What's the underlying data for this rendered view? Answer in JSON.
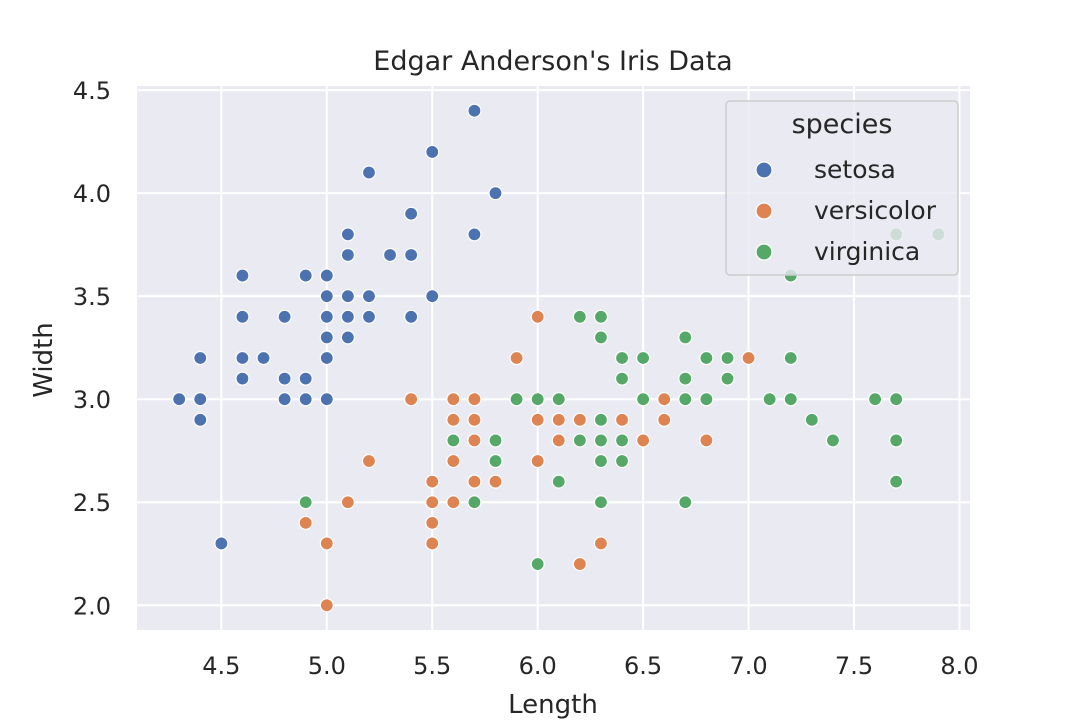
{
  "chart_data": {
    "type": "scatter",
    "title": "Edgar Anderson's Iris Data",
    "xlabel": "Length",
    "ylabel": "Width",
    "xlim": [
      4.1,
      8.05
    ],
    "ylim": [
      1.88,
      4.52
    ],
    "xticks": [
      4.5,
      5.0,
      5.5,
      6.0,
      6.5,
      7.0,
      7.5,
      8.0
    ],
    "xtick_labels": [
      "4.5",
      "5.0",
      "5.5",
      "6.0",
      "6.5",
      "7.0",
      "7.5",
      "8.0"
    ],
    "yticks": [
      2.0,
      2.5,
      3.0,
      3.5,
      4.0,
      4.5
    ],
    "ytick_labels": [
      "2.0",
      "2.5",
      "3.0",
      "3.5",
      "4.0",
      "4.5"
    ],
    "grid": true,
    "legend": {
      "title": "species",
      "position": "top-right"
    },
    "series": [
      {
        "name": "setosa",
        "color": "#4c72b0",
        "points": [
          [
            4.3,
            3.0
          ],
          [
            4.4,
            3.2
          ],
          [
            4.4,
            3.0
          ],
          [
            4.4,
            2.9
          ],
          [
            4.5,
            2.3
          ],
          [
            4.6,
            3.6
          ],
          [
            4.6,
            3.4
          ],
          [
            4.6,
            3.2
          ],
          [
            4.6,
            3.1
          ],
          [
            4.7,
            3.2
          ],
          [
            4.8,
            3.4
          ],
          [
            4.8,
            3.1
          ],
          [
            4.8,
            3.0
          ],
          [
            4.9,
            3.6
          ],
          [
            4.9,
            3.1
          ],
          [
            4.9,
            3.0
          ],
          [
            5.0,
            3.6
          ],
          [
            5.0,
            3.5
          ],
          [
            5.0,
            3.4
          ],
          [
            5.0,
            3.3
          ],
          [
            5.0,
            3.2
          ],
          [
            5.0,
            3.0
          ],
          [
            5.1,
            3.8
          ],
          [
            5.1,
            3.7
          ],
          [
            5.1,
            3.5
          ],
          [
            5.1,
            3.4
          ],
          [
            5.1,
            3.3
          ],
          [
            5.2,
            4.1
          ],
          [
            5.2,
            3.5
          ],
          [
            5.2,
            3.4
          ],
          [
            5.3,
            3.7
          ],
          [
            5.4,
            3.9
          ],
          [
            5.4,
            3.7
          ],
          [
            5.4,
            3.4
          ],
          [
            5.5,
            4.2
          ],
          [
            5.5,
            3.5
          ],
          [
            5.7,
            4.4
          ],
          [
            5.7,
            3.8
          ],
          [
            5.8,
            4.0
          ]
        ]
      },
      {
        "name": "versicolor",
        "color": "#dd8452",
        "points": [
          [
            4.9,
            2.4
          ],
          [
            5.0,
            2.3
          ],
          [
            5.0,
            2.0
          ],
          [
            5.1,
            2.5
          ],
          [
            5.2,
            2.7
          ],
          [
            5.4,
            3.0
          ],
          [
            5.5,
            2.6
          ],
          [
            5.5,
            2.5
          ],
          [
            5.5,
            2.4
          ],
          [
            5.5,
            2.3
          ],
          [
            5.6,
            3.0
          ],
          [
            5.6,
            2.9
          ],
          [
            5.6,
            2.7
          ],
          [
            5.6,
            2.5
          ],
          [
            5.7,
            3.0
          ],
          [
            5.7,
            2.9
          ],
          [
            5.7,
            2.8
          ],
          [
            5.7,
            2.6
          ],
          [
            5.8,
            2.7
          ],
          [
            5.8,
            2.6
          ],
          [
            5.9,
            3.2
          ],
          [
            6.0,
            3.4
          ],
          [
            6.0,
            2.9
          ],
          [
            6.0,
            2.7
          ],
          [
            6.1,
            2.9
          ],
          [
            6.1,
            2.8
          ],
          [
            6.2,
            2.9
          ],
          [
            6.2,
            2.2
          ],
          [
            6.3,
            2.3
          ],
          [
            6.4,
            2.9
          ],
          [
            6.5,
            2.8
          ],
          [
            6.6,
            3.0
          ],
          [
            6.6,
            2.9
          ],
          [
            6.8,
            2.8
          ],
          [
            7.0,
            3.2
          ]
        ]
      },
      {
        "name": "virginica",
        "color": "#55a868",
        "points": [
          [
            4.9,
            2.5
          ],
          [
            5.6,
            2.8
          ],
          [
            5.7,
            2.5
          ],
          [
            5.8,
            2.8
          ],
          [
            5.8,
            2.7
          ],
          [
            5.9,
            3.0
          ],
          [
            6.0,
            3.0
          ],
          [
            6.0,
            2.2
          ],
          [
            6.1,
            3.0
          ],
          [
            6.1,
            2.6
          ],
          [
            6.2,
            3.4
          ],
          [
            6.2,
            2.8
          ],
          [
            6.3,
            3.4
          ],
          [
            6.3,
            3.3
          ],
          [
            6.3,
            2.9
          ],
          [
            6.3,
            2.8
          ],
          [
            6.3,
            2.7
          ],
          [
            6.3,
            2.5
          ],
          [
            6.4,
            3.2
          ],
          [
            6.4,
            3.1
          ],
          [
            6.4,
            2.8
          ],
          [
            6.4,
            2.7
          ],
          [
            6.5,
            3.2
          ],
          [
            6.5,
            3.0
          ],
          [
            6.7,
            3.3
          ],
          [
            6.7,
            3.1
          ],
          [
            6.7,
            3.0
          ],
          [
            6.7,
            2.5
          ],
          [
            6.8,
            3.2
          ],
          [
            6.8,
            3.0
          ],
          [
            6.9,
            3.2
          ],
          [
            6.9,
            3.1
          ],
          [
            7.1,
            3.0
          ],
          [
            7.2,
            3.6
          ],
          [
            7.2,
            3.2
          ],
          [
            7.2,
            3.0
          ],
          [
            7.3,
            2.9
          ],
          [
            7.4,
            2.8
          ],
          [
            7.6,
            3.0
          ],
          [
            7.7,
            3.8
          ],
          [
            7.7,
            3.0
          ],
          [
            7.7,
            2.8
          ],
          [
            7.7,
            2.6
          ],
          [
            7.9,
            3.8
          ]
        ]
      }
    ]
  }
}
